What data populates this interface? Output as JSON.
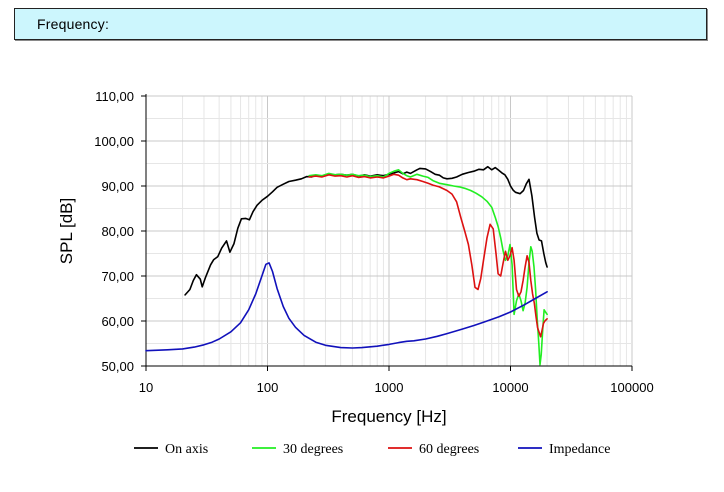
{
  "header": {
    "title": "Frequency:"
  },
  "chart_data": {
    "type": "line",
    "xlabel": "Frequency [Hz]",
    "ylabel": "SPL [dB]",
    "xscale": "log",
    "xlim": [
      10,
      100000
    ],
    "ylim": [
      50,
      110
    ],
    "x_ticks": [
      "10",
      "100",
      "1000",
      "10000",
      "100000"
    ],
    "y_ticks": [
      "50,00",
      "60,00",
      "70,00",
      "80,00",
      "90,00",
      "100,00",
      "110,00"
    ],
    "grid": true,
    "legend_position": "bottom",
    "series": [
      {
        "name": "On axis",
        "color": "#000000",
        "points": [
          [
            21,
            65.8
          ],
          [
            23,
            67
          ],
          [
            24.5,
            69
          ],
          [
            26,
            70.3
          ],
          [
            28,
            69.3
          ],
          [
            29,
            67.6
          ],
          [
            31,
            69.8
          ],
          [
            34,
            72.5
          ],
          [
            36,
            73.6
          ],
          [
            39,
            74.3
          ],
          [
            42,
            76.2
          ],
          [
            46,
            77.8
          ],
          [
            49,
            75.3
          ],
          [
            53,
            77.2
          ],
          [
            57,
            80.6
          ],
          [
            61,
            82.7
          ],
          [
            66,
            82.8
          ],
          [
            71,
            82.5
          ],
          [
            76,
            84.3
          ],
          [
            82,
            85.7
          ],
          [
            90,
            86.8
          ],
          [
            100,
            87.7
          ],
          [
            110,
            88.7
          ],
          [
            120,
            89.7
          ],
          [
            135,
            90.4
          ],
          [
            150,
            91.0
          ],
          [
            170,
            91.3
          ],
          [
            190,
            91.6
          ],
          [
            210,
            92.1
          ],
          [
            230,
            92.0
          ],
          [
            250,
            92.4
          ],
          [
            280,
            92.1
          ],
          [
            320,
            92.6
          ],
          [
            360,
            92.5
          ],
          [
            400,
            92.6
          ],
          [
            450,
            92.4
          ],
          [
            500,
            92.6
          ],
          [
            560,
            92.2
          ],
          [
            630,
            92.5
          ],
          [
            700,
            92.2
          ],
          [
            800,
            92.5
          ],
          [
            900,
            92.3
          ],
          [
            1000,
            92.6
          ],
          [
            1100,
            92.9
          ],
          [
            1200,
            93.2
          ],
          [
            1300,
            92.7
          ],
          [
            1400,
            93.1
          ],
          [
            1500,
            92.8
          ],
          [
            1600,
            93.2
          ],
          [
            1700,
            93.6
          ],
          [
            1800,
            93.9
          ],
          [
            2000,
            93.8
          ],
          [
            2200,
            93.2
          ],
          [
            2400,
            92.6
          ],
          [
            2600,
            92.4
          ],
          [
            2800,
            91.8
          ],
          [
            3000,
            91.6
          ],
          [
            3300,
            91.7
          ],
          [
            3600,
            92.0
          ],
          [
            4000,
            92.6
          ],
          [
            4500,
            93.0
          ],
          [
            5000,
            93.3
          ],
          [
            5500,
            93.7
          ],
          [
            6000,
            93.6
          ],
          [
            6500,
            94.3
          ],
          [
            7000,
            93.6
          ],
          [
            7500,
            94.1
          ],
          [
            8000,
            93.5
          ],
          [
            8500,
            92.9
          ],
          [
            9000,
            92.5
          ],
          [
            9500,
            91.5
          ],
          [
            10000,
            90.0
          ],
          [
            10500,
            89.1
          ],
          [
            11000,
            88.6
          ],
          [
            12000,
            88.3
          ],
          [
            12800,
            89.0
          ],
          [
            13500,
            90.5
          ],
          [
            14200,
            91.5
          ],
          [
            15000,
            87.8
          ],
          [
            15800,
            83.0
          ],
          [
            16500,
            79.5
          ],
          [
            17200,
            78.0
          ],
          [
            18000,
            77.8
          ],
          [
            18800,
            75.0
          ],
          [
            19500,
            73.0
          ],
          [
            20000,
            72.0
          ]
        ]
      },
      {
        "name": "30 degrees",
        "color": "#22ee22",
        "points": [
          [
            220,
            92.3
          ],
          [
            250,
            92.5
          ],
          [
            280,
            92.3
          ],
          [
            320,
            92.8
          ],
          [
            360,
            92.5
          ],
          [
            400,
            92.6
          ],
          [
            450,
            92.4
          ],
          [
            500,
            92.6
          ],
          [
            560,
            92.3
          ],
          [
            630,
            92.4
          ],
          [
            700,
            92.1
          ],
          [
            800,
            92.3
          ],
          [
            900,
            92.0
          ],
          [
            1000,
            92.8
          ],
          [
            1100,
            93.3
          ],
          [
            1200,
            93.6
          ],
          [
            1300,
            92.8
          ],
          [
            1400,
            92.3
          ],
          [
            1500,
            92.0
          ],
          [
            1700,
            92.6
          ],
          [
            1900,
            92.2
          ],
          [
            2100,
            91.9
          ],
          [
            2300,
            91.2
          ],
          [
            2600,
            90.6
          ],
          [
            3000,
            90.3
          ],
          [
            3400,
            90.0
          ],
          [
            3800,
            89.8
          ],
          [
            4200,
            89.5
          ],
          [
            4700,
            89.0
          ],
          [
            5200,
            88.4
          ],
          [
            5800,
            87.6
          ],
          [
            6400,
            86.6
          ],
          [
            7000,
            85.3
          ],
          [
            7500,
            83.0
          ],
          [
            7900,
            81.0
          ],
          [
            8300,
            78.5
          ],
          [
            8700,
            75.5
          ],
          [
            9100,
            73.5
          ],
          [
            9500,
            74.5
          ],
          [
            9900,
            77.0
          ],
          [
            10300,
            72.5
          ],
          [
            10700,
            61.5
          ],
          [
            11200,
            64.5
          ],
          [
            11700,
            66.0
          ],
          [
            12200,
            64.5
          ],
          [
            12700,
            62.3
          ],
          [
            13200,
            64.0
          ],
          [
            13700,
            67.5
          ],
          [
            14200,
            73.0
          ],
          [
            14700,
            76.5
          ],
          [
            15100,
            75.5
          ],
          [
            15600,
            72.0
          ],
          [
            16100,
            67.0
          ],
          [
            16600,
            60.5
          ],
          [
            17100,
            55.0
          ],
          [
            17500,
            50.3
          ],
          [
            17900,
            52.5
          ],
          [
            18400,
            58.0
          ],
          [
            18900,
            62.5
          ],
          [
            19400,
            62.0
          ],
          [
            20000,
            61.5
          ]
        ]
      },
      {
        "name": "60 degrees",
        "color": "#dd1111",
        "points": [
          [
            220,
            92.0
          ],
          [
            250,
            92.2
          ],
          [
            280,
            92.0
          ],
          [
            320,
            92.5
          ],
          [
            360,
            92.2
          ],
          [
            400,
            92.3
          ],
          [
            450,
            92.0
          ],
          [
            500,
            92.3
          ],
          [
            560,
            91.9
          ],
          [
            630,
            92.1
          ],
          [
            700,
            91.8
          ],
          [
            800,
            92.0
          ],
          [
            900,
            91.8
          ],
          [
            1000,
            92.2
          ],
          [
            1100,
            92.6
          ],
          [
            1200,
            92.4
          ],
          [
            1300,
            91.8
          ],
          [
            1400,
            91.4
          ],
          [
            1500,
            91.6
          ],
          [
            1700,
            91.4
          ],
          [
            1900,
            91.0
          ],
          [
            2100,
            90.6
          ],
          [
            2300,
            90.2
          ],
          [
            2600,
            89.8
          ],
          [
            3000,
            89.0
          ],
          [
            3300,
            88.2
          ],
          [
            3600,
            86.5
          ],
          [
            3900,
            83.0
          ],
          [
            4200,
            80.0
          ],
          [
            4500,
            77.0
          ],
          [
            4800,
            72.5
          ],
          [
            5100,
            67.5
          ],
          [
            5400,
            67.0
          ],
          [
            5700,
            69.5
          ],
          [
            6000,
            73.5
          ],
          [
            6400,
            78.5
          ],
          [
            6800,
            81.5
          ],
          [
            7200,
            80.5
          ],
          [
            7600,
            75.0
          ],
          [
            7900,
            70.5
          ],
          [
            8300,
            70.0
          ],
          [
            8700,
            73.0
          ],
          [
            9100,
            75.5
          ],
          [
            9500,
            73.5
          ],
          [
            9900,
            74.5
          ],
          [
            10300,
            76.3
          ],
          [
            10700,
            73.5
          ],
          [
            11200,
            67.0
          ],
          [
            11700,
            65.5
          ],
          [
            12200,
            66.5
          ],
          [
            12700,
            69.0
          ],
          [
            13200,
            72.0
          ],
          [
            13700,
            74.5
          ],
          [
            14200,
            73.0
          ],
          [
            14700,
            69.0
          ],
          [
            15200,
            66.0
          ],
          [
            15700,
            64.0
          ],
          [
            16200,
            61.0
          ],
          [
            16700,
            58.5
          ],
          [
            17200,
            57.5
          ],
          [
            17700,
            56.5
          ],
          [
            18200,
            58.0
          ],
          [
            18700,
            59.5
          ],
          [
            19200,
            60.0
          ],
          [
            20000,
            60.5
          ]
        ]
      },
      {
        "name": "Impedance",
        "color": "#1111bb",
        "points": [
          [
            10,
            53.4
          ],
          [
            15,
            53.6
          ],
          [
            20,
            53.8
          ],
          [
            25,
            54.2
          ],
          [
            30,
            54.7
          ],
          [
            35,
            55.3
          ],
          [
            40,
            56.0
          ],
          [
            50,
            57.6
          ],
          [
            60,
            59.6
          ],
          [
            70,
            62.5
          ],
          [
            80,
            66.0
          ],
          [
            90,
            70.0
          ],
          [
            97,
            72.6
          ],
          [
            103,
            72.9
          ],
          [
            110,
            71.0
          ],
          [
            120,
            67.2
          ],
          [
            135,
            63.2
          ],
          [
            150,
            60.6
          ],
          [
            170,
            58.6
          ],
          [
            200,
            56.8
          ],
          [
            250,
            55.3
          ],
          [
            300,
            54.6
          ],
          [
            400,
            54.1
          ],
          [
            500,
            54.0
          ],
          [
            600,
            54.1
          ],
          [
            800,
            54.4
          ],
          [
            1000,
            54.8
          ],
          [
            1200,
            55.2
          ],
          [
            1400,
            55.5
          ],
          [
            1600,
            55.6
          ],
          [
            2000,
            56.0
          ],
          [
            2500,
            56.6
          ],
          [
            3000,
            57.2
          ],
          [
            4000,
            58.2
          ],
          [
            5000,
            59.0
          ],
          [
            6000,
            59.7
          ],
          [
            8000,
            60.9
          ],
          [
            10000,
            62.0
          ],
          [
            13000,
            63.6
          ],
          [
            16000,
            65.0
          ],
          [
            20000,
            66.5
          ]
        ]
      }
    ]
  }
}
